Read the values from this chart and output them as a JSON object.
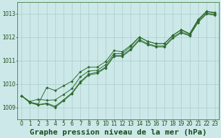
{
  "bg_color": "#cce8e8",
  "grid_color": "#aacccc",
  "line_color": "#2d6a2d",
  "marker_color": "#2d6a2d",
  "xlabel": "Graphe pression niveau de la mer (hPa)",
  "xlim": [
    -0.5,
    23.5
  ],
  "ylim": [
    1008.5,
    1013.5
  ],
  "yticks": [
    1009,
    1010,
    1011,
    1012,
    1013
  ],
  "xticks": [
    0,
    1,
    2,
    3,
    4,
    5,
    6,
    7,
    8,
    9,
    10,
    11,
    12,
    13,
    14,
    15,
    16,
    17,
    18,
    19,
    20,
    21,
    22,
    23
  ],
  "series": [
    [
      1009.5,
      1009.2,
      1009.1,
      1009.15,
      1009.0,
      1009.28,
      1009.58,
      1010.05,
      1010.38,
      1010.45,
      1010.68,
      1011.18,
      1011.18,
      1011.45,
      1011.85,
      1011.68,
      1011.58,
      1011.58,
      1011.95,
      1012.18,
      1012.05,
      1012.62,
      1012.98,
      1012.93
    ],
    [
      1009.5,
      1009.22,
      1009.12,
      1009.18,
      1009.05,
      1009.32,
      1009.62,
      1010.1,
      1010.42,
      1010.5,
      1010.72,
      1011.22,
      1011.22,
      1011.5,
      1011.9,
      1011.72,
      1011.62,
      1011.62,
      1012.0,
      1012.22,
      1012.08,
      1012.68,
      1013.02,
      1012.97
    ],
    [
      1009.5,
      1009.25,
      1009.35,
      1009.3,
      1009.32,
      1009.55,
      1009.8,
      1010.3,
      1010.55,
      1010.58,
      1010.82,
      1011.3,
      1011.3,
      1011.6,
      1012.0,
      1011.82,
      1011.72,
      1011.72,
      1012.08,
      1012.32,
      1012.15,
      1012.75,
      1013.1,
      1013.05
    ],
    [
      1009.5,
      1009.22,
      1009.15,
      1009.85,
      1009.72,
      1009.92,
      1010.12,
      1010.52,
      1010.72,
      1010.72,
      1010.95,
      1011.42,
      1011.38,
      1011.65,
      1012.0,
      1011.82,
      1011.72,
      1011.72,
      1012.08,
      1012.3,
      1012.12,
      1012.72,
      1013.08,
      1013.02
    ]
  ],
  "title_fontsize": 8,
  "tick_fontsize": 5.5,
  "title_color": "#1a4a1a",
  "tick_color": "#1a4a1a",
  "axis_color": "#3a7a3a",
  "linewidth": 0.7,
  "markersize": 1.8
}
